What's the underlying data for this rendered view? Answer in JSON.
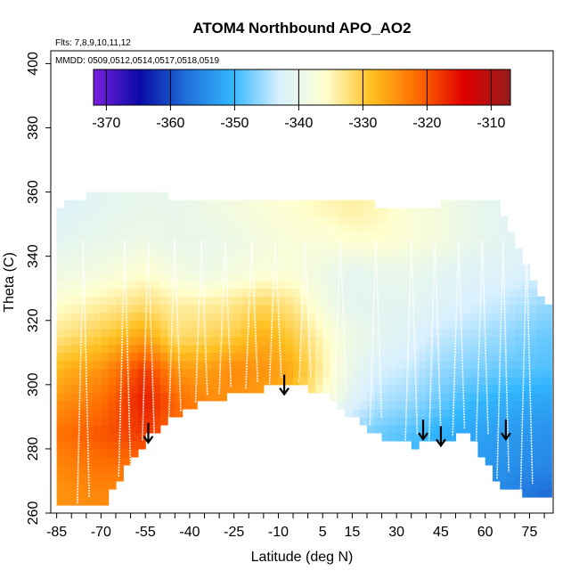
{
  "chart_data": {
    "type": "heatmap",
    "title": "ATOM4 Northbound APO_AO2",
    "annotations": {
      "flights": "Flts: 7,8,9,10,11,12",
      "dates": "MMDD: 0509,0512,0514,0517,0518,0519"
    },
    "xlabel": "Latitude (deg N)",
    "ylabel": "Theta (C)",
    "xlim": [
      -87,
      83
    ],
    "ylim": [
      260,
      404
    ],
    "xticks": [
      -85,
      -70,
      -55,
      -40,
      -25,
      -10,
      5,
      15,
      30,
      45,
      60,
      75
    ],
    "yticks": [
      260,
      280,
      300,
      320,
      340,
      360,
      380,
      400
    ],
    "grid": false,
    "colorbar": {
      "placement": "top",
      "range": [
        -372,
        -307
      ],
      "ticks": [
        -370,
        -360,
        -350,
        -340,
        -330,
        -320,
        -310
      ],
      "colors": [
        "#7a1fe0",
        "#0a0aa6",
        "#1f6fd8",
        "#32b6ff",
        "#d8f0ff",
        "#ffffd0",
        "#ffc020",
        "#ff6a00",
        "#e00000",
        "#961c1c"
      ]
    },
    "field": {
      "lat": [
        -85,
        -70,
        -55,
        -45,
        -35,
        -25,
        -15,
        -5,
        5,
        15,
        25,
        35,
        45,
        55,
        65,
        80
      ],
      "theta": [
        265,
        275,
        285,
        295,
        305,
        315,
        325,
        335,
        345,
        355
      ],
      "floor_theta": [
        262,
        262,
        283,
        290,
        295,
        297,
        299,
        300,
        298,
        290,
        284,
        281,
        282,
        285,
        268,
        264
      ],
      "top_theta": [
        355,
        360,
        360,
        358,
        358,
        358,
        357,
        357,
        357,
        357,
        356,
        356,
        356,
        358,
        356,
        325
      ],
      "values": [
        [
          -325,
          -324,
          -326,
          -330,
          -330,
          -335,
          -338,
          -340,
          -341,
          -342,
          -344,
          -346,
          -350,
          -352,
          -355,
          -358
        ],
        [
          -324,
          -322,
          -322,
          -325,
          -328,
          -332,
          -336,
          -339,
          -342,
          -345,
          -348,
          -350,
          -352,
          -353,
          -354,
          -355
        ],
        [
          -322,
          -320,
          -318,
          -322,
          -326,
          -328,
          -330,
          -334,
          -340,
          -346,
          -348,
          -349,
          -351,
          -352,
          -353,
          -354
        ],
        [
          -325,
          -322,
          -316,
          -321,
          -324,
          -325,
          -326,
          -329,
          -336,
          -342,
          -345,
          -346,
          -348,
          -350,
          -351,
          -352
        ],
        [
          -328,
          -325,
          -318,
          -325,
          -326,
          -324,
          -325,
          -327,
          -334,
          -340,
          -343,
          -344,
          -346,
          -347,
          -348,
          -349
        ],
        [
          -333,
          -330,
          -326,
          -332,
          -331,
          -330,
          -327,
          -330,
          -335,
          -339,
          -341,
          -342,
          -344,
          -345,
          -346,
          -348
        ],
        [
          -336,
          -334,
          -332,
          -334,
          -334,
          -333,
          -331,
          -333,
          -338,
          -341,
          -341,
          -341,
          -342,
          -343,
          -344,
          -346
        ],
        [
          -339,
          -338,
          -336,
          -338,
          -339,
          -338,
          -337,
          -337,
          -339,
          -341,
          -340,
          -340,
          -341,
          -342,
          -342,
          -343
        ],
        [
          -341,
          -340,
          -339,
          -340,
          -340,
          -339,
          -338,
          -337,
          -337,
          -336,
          -336,
          -337,
          -338,
          -340,
          -341,
          -342
        ],
        [
          -342,
          -341,
          -340,
          -340,
          -339,
          -338,
          -337,
          -336,
          -335,
          -334,
          -335,
          -337,
          -338,
          -340,
          -341,
          -342
        ]
      ]
    },
    "markers": [
      {
        "lat": -54,
        "theta": 282
      },
      {
        "lat": -8,
        "theta": 297
      },
      {
        "lat": 39,
        "theta": 283
      },
      {
        "lat": 45,
        "theta": 281
      },
      {
        "lat": 67,
        "theta": 283
      }
    ]
  }
}
